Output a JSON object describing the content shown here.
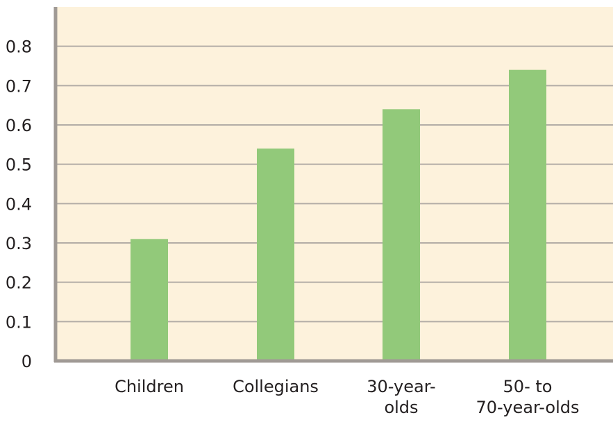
{
  "chart_data": {
    "type": "bar",
    "categories": [
      "Children",
      "Collegians",
      "30-year-olds",
      "50- to 70-year-olds"
    ],
    "category_label_lines": [
      [
        "Children"
      ],
      [
        "Collegians"
      ],
      [
        "30-year-",
        "olds"
      ],
      [
        "50- to",
        "70-year-olds"
      ]
    ],
    "values": [
      0.31,
      0.54,
      0.64,
      0.74
    ],
    "ylim": [
      0,
      0.9
    ],
    "yticks": [
      "0",
      "0.1",
      "0.2",
      "0.3",
      "0.4",
      "0.5",
      "0.6",
      "0.7",
      "0.8"
    ],
    "grid": true,
    "colors": {
      "bar": "#92c97a",
      "plot_background": "#fdf2dc",
      "gridline": "#b3ada6",
      "axis": "#a09a95"
    }
  }
}
